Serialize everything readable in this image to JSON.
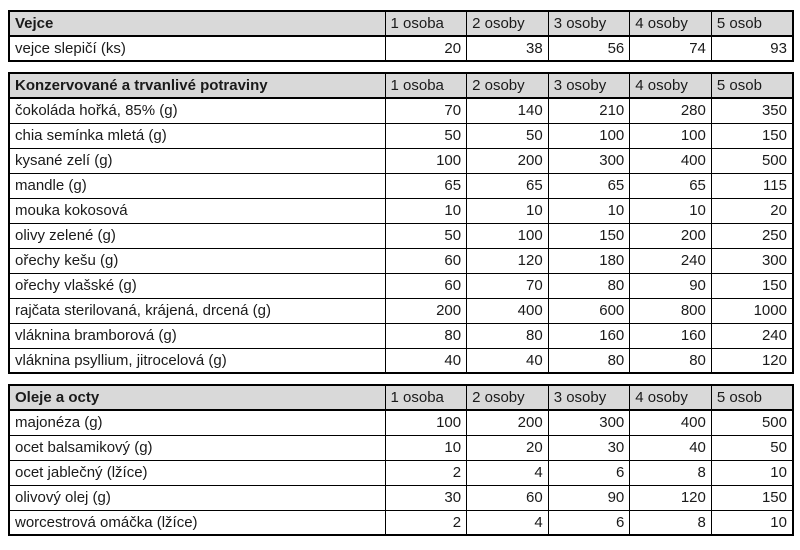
{
  "columns": [
    "1 osoba",
    "2 osoby",
    "3 osoby",
    "4 osoby",
    "5 osob"
  ],
  "styles": {
    "header_bg": "#d9d9d9",
    "border_color": "#000000",
    "text_color": "#1a1a1a"
  },
  "tables": [
    {
      "title": "Vejce",
      "rows": [
        {
          "label": "vejce slepičí (ks)",
          "values": [
            20,
            38,
            56,
            74,
            93
          ]
        }
      ]
    },
    {
      "title": "Konzervované a trvanlivé potraviny",
      "rows": [
        {
          "label": "čokoláda hořká, 85% (g)",
          "values": [
            70,
            140,
            210,
            280,
            350
          ]
        },
        {
          "label": "chia semínka mletá (g)",
          "values": [
            50,
            50,
            100,
            100,
            150
          ]
        },
        {
          "label": "kysané zelí (g)",
          "values": [
            100,
            200,
            300,
            400,
            500
          ]
        },
        {
          "label": "mandle (g)",
          "values": [
            65,
            65,
            65,
            65,
            115
          ]
        },
        {
          "label": "mouka kokosová",
          "values": [
            10,
            10,
            10,
            10,
            20
          ]
        },
        {
          "label": "olivy zelené (g)",
          "values": [
            50,
            100,
            150,
            200,
            250
          ]
        },
        {
          "label": "ořechy kešu (g)",
          "values": [
            60,
            120,
            180,
            240,
            300
          ]
        },
        {
          "label": "ořechy vlašské (g)",
          "values": [
            60,
            70,
            80,
            90,
            150
          ]
        },
        {
          "label": "rajčata sterilovaná, krájená, drcená (g)",
          "values": [
            200,
            400,
            600,
            800,
            1000
          ]
        },
        {
          "label": "vláknina bramborová (g)",
          "values": [
            80,
            80,
            160,
            160,
            240
          ]
        },
        {
          "label": "vláknina psyllium, jitrocelová (g)",
          "values": [
            40,
            40,
            80,
            80,
            120
          ]
        }
      ]
    },
    {
      "title": "Oleje a octy",
      "rows": [
        {
          "label": "majonéza (g)",
          "values": [
            100,
            200,
            300,
            400,
            500
          ]
        },
        {
          "label": "ocet balsamikový (g)",
          "values": [
            10,
            20,
            30,
            40,
            50
          ]
        },
        {
          "label": "ocet jablečný (lžíce)",
          "values": [
            2,
            4,
            6,
            8,
            10
          ]
        },
        {
          "label": "olivový olej (g)",
          "values": [
            30,
            60,
            90,
            120,
            150
          ]
        },
        {
          "label": "worcestrová omáčka (lžíce)",
          "values": [
            2,
            4,
            6,
            8,
            10
          ]
        }
      ]
    }
  ]
}
